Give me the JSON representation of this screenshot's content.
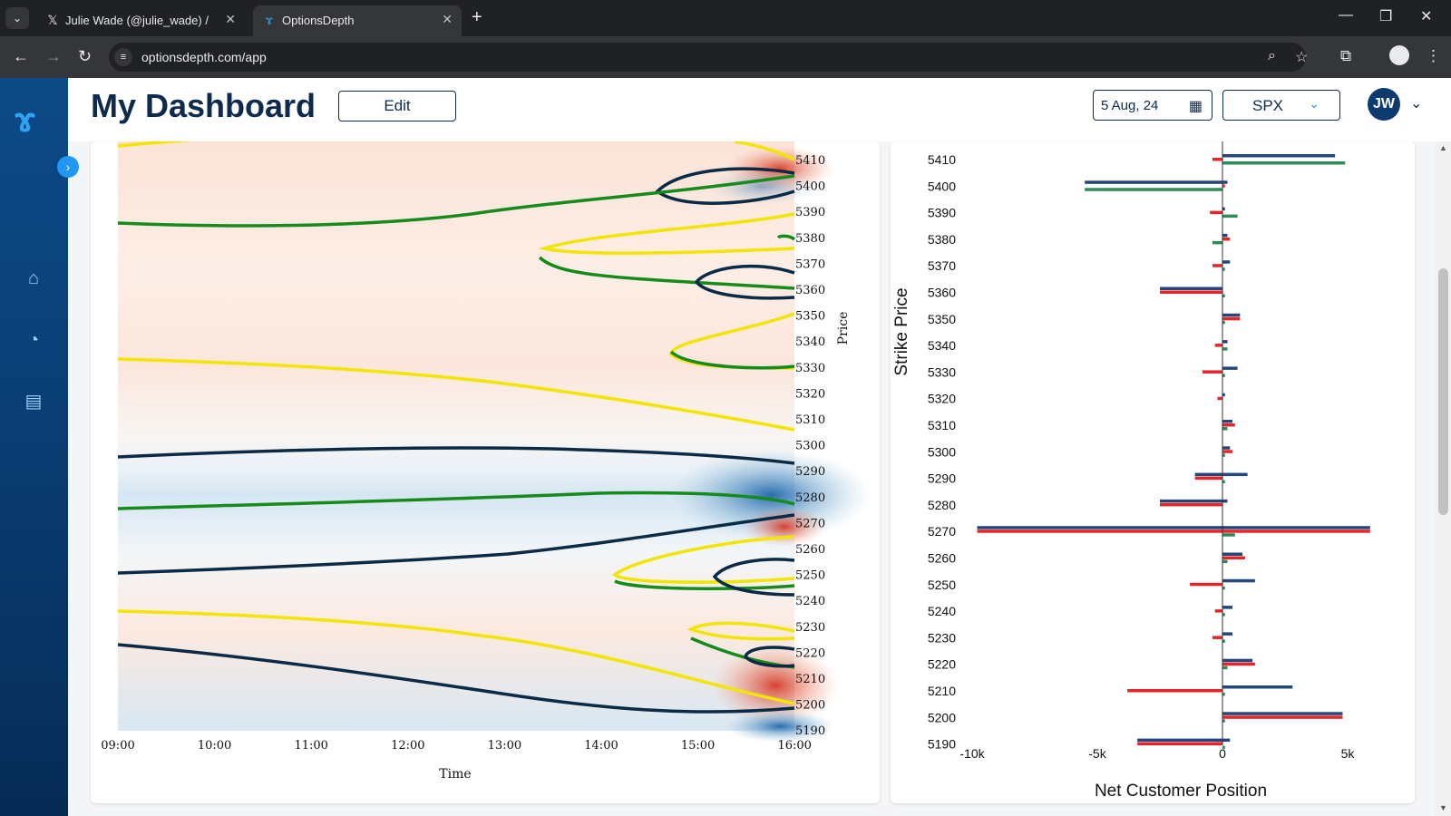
{
  "browser": {
    "tabs": [
      {
        "title": "Julie Wade (@julie_wade) / X",
        "icon": "x-logo-icon",
        "active": false
      },
      {
        "title": "OptionsDepth",
        "icon": "optionsdepth-logo-icon",
        "active": true
      }
    ],
    "url": "optionsdepth.com/app"
  },
  "app": {
    "page_title": "My Dashboard",
    "edit_label": "Edit",
    "date_value": "5 Aug, 24",
    "symbol_value": "SPX",
    "avatar_initials": "JW",
    "sidebar": [
      "home-icon",
      "gauge-icon",
      "presentation-icon"
    ]
  },
  "heatmap": {
    "time_labels": [
      "09:00",
      "10:00",
      "11:00",
      "12:00",
      "13:00",
      "14:00",
      "15:00",
      "16:00"
    ],
    "price_ticks": [
      5410,
      5400,
      5390,
      5380,
      5370,
      5360,
      5350,
      5340,
      5330,
      5320,
      5310,
      5300,
      5290,
      5280,
      5270,
      5260,
      5250,
      5240,
      5230,
      5220,
      5210,
      5200,
      5190
    ],
    "xlabel": "Time",
    "ylabel": "Price"
  },
  "chart_data": {
    "type": "bar",
    "orientation": "horizontal",
    "ylabel": "Strike Price",
    "xlabel": "Net Customer Position",
    "xticks": [
      "-10k",
      "-5k",
      "0",
      "5k"
    ],
    "xlim": [
      -10000,
      7000
    ],
    "colors": {
      "blue": "#24467a",
      "red": "#e8242b",
      "green": "#2e8b57"
    },
    "strikes": [
      5410,
      5400,
      5390,
      5380,
      5370,
      5360,
      5350,
      5340,
      5330,
      5320,
      5310,
      5300,
      5290,
      5280,
      5270,
      5260,
      5250,
      5240,
      5230,
      5220,
      5210,
      5200,
      5190
    ],
    "series": [
      {
        "color": "blue",
        "values": [
          4500,
          200,
          100,
          200,
          300,
          -2500,
          700,
          200,
          600,
          100,
          400,
          300,
          1000,
          200,
          5900,
          800,
          1300,
          400,
          400,
          1200,
          2800,
          4800,
          300
        ]
      },
      {
        "color": "red",
        "values": [
          -400,
          100,
          -500,
          300,
          -400,
          -2500,
          700,
          -300,
          -800,
          -200,
          500,
          400,
          -1100,
          -2500,
          5900,
          900,
          -1300,
          -300,
          -400,
          1300,
          -3800,
          4800,
          -300
        ]
      },
      {
        "color": "green",
        "values": [
          4900,
          -5500,
          600,
          -400,
          100,
          100,
          100,
          200,
          100,
          0,
          200,
          100,
          100,
          0,
          500,
          200,
          100,
          100,
          100,
          200,
          100,
          100,
          100
        ]
      },
      {
        "color": "blue_lower",
        "values": [
          0,
          -5500,
          0,
          0,
          0,
          0,
          0,
          0,
          0,
          0,
          0,
          0,
          -1100,
          -2500,
          -9800,
          0,
          0,
          0,
          0,
          0,
          0,
          0,
          -3400
        ]
      },
      {
        "color": "red_lower",
        "values": [
          0,
          0,
          0,
          0,
          0,
          0,
          0,
          0,
          0,
          0,
          0,
          0,
          0,
          0,
          -9800,
          0,
          0,
          0,
          0,
          0,
          0,
          0,
          -3400
        ]
      }
    ]
  }
}
